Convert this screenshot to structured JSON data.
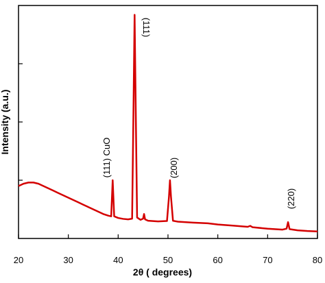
{
  "chart_data": {
    "type": "line",
    "x_label": "2θ ( degrees)",
    "y_label": "Intensity (a.u.)",
    "xlim": [
      20,
      80
    ],
    "xticks": [
      20,
      30,
      40,
      50,
      60,
      70,
      80
    ],
    "ylim": [
      0,
      100
    ],
    "yticks": [
      25,
      50,
      75
    ],
    "annotations": [
      "(111) CuO",
      "(111)",
      "(200)",
      "(220)"
    ],
    "series": [
      {
        "color": "#d40000",
        "x": [
          20,
          21,
          22,
          23,
          24,
          25,
          26,
          27,
          28,
          29,
          30,
          31,
          32,
          33,
          34,
          35,
          36,
          37,
          38,
          38.6,
          38.9,
          39.2,
          40,
          41,
          42,
          42.8,
          43.1,
          43.3,
          43.5,
          43.8,
          44.5,
          45.0,
          45.2,
          45.4,
          46,
          48,
          49.8,
          50.2,
          50.4,
          50.6,
          51,
          52,
          55,
          58,
          60,
          63,
          66,
          66.5,
          67,
          70,
          73,
          73.8,
          74.1,
          74.4,
          76,
          78,
          80
        ],
        "values": [
          22.5,
          23.5,
          24,
          24,
          23.5,
          22.5,
          21.5,
          20.5,
          19.5,
          18.5,
          17.5,
          16.5,
          15.5,
          14.5,
          13.5,
          12.5,
          11.5,
          10.5,
          9.8,
          9.5,
          25,
          9.5,
          8.8,
          8.4,
          8.2,
          8.5,
          60,
          96,
          60,
          9,
          8,
          8.5,
          10.5,
          8.2,
          7.6,
          7.3,
          7.5,
          18,
          25,
          18,
          7.6,
          7.2,
          6.8,
          6.5,
          6.0,
          5.5,
          5.0,
          5.4,
          4.8,
          4.2,
          3.8,
          4.2,
          7,
          4,
          3.5,
          3.2,
          3
        ]
      }
    ]
  }
}
